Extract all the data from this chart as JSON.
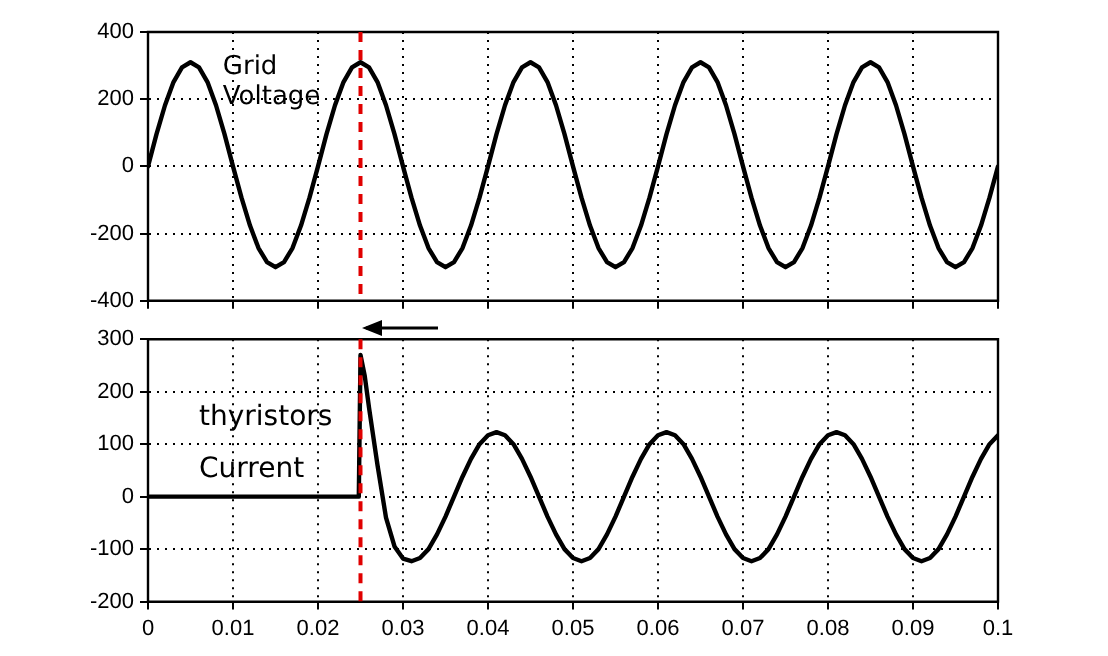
{
  "chart_data": [
    {
      "type": "line",
      "xlim": [
        0,
        0.1
      ],
      "xticks": [
        0,
        0.01,
        0.02,
        0.03,
        0.04,
        0.05,
        0.06,
        0.07,
        0.08,
        0.09,
        0.1
      ],
      "ylim": [
        -400,
        400
      ],
      "yticks": [
        -400,
        -200,
        0,
        200,
        400
      ],
      "tick_labels": "y",
      "grid": true,
      "marker": "none",
      "line_style": "solid",
      "x": [
        0,
        0.001,
        0.002,
        0.003,
        0.004,
        0.005,
        0.006,
        0.007,
        0.008,
        0.009,
        0.01,
        0.011,
        0.012,
        0.013,
        0.014,
        0.015,
        0.016,
        0.017,
        0.018,
        0.019,
        0.02,
        0.021,
        0.022,
        0.023,
        0.024,
        0.025,
        0.026,
        0.027,
        0.028,
        0.029,
        0.03,
        0.031,
        0.032,
        0.033,
        0.034,
        0.035,
        0.036,
        0.037,
        0.038,
        0.039,
        0.04,
        0.041,
        0.042,
        0.043,
        0.044,
        0.045,
        0.046,
        0.047,
        0.048,
        0.049,
        0.05,
        0.051,
        0.052,
        0.053,
        0.054,
        0.055,
        0.056,
        0.057,
        0.058,
        0.059,
        0.06,
        0.061,
        0.062,
        0.063,
        0.064,
        0.065,
        0.066,
        0.067,
        0.068,
        0.069,
        0.07,
        0.071,
        0.072,
        0.073,
        0.074,
        0.075,
        0.076,
        0.077,
        0.078,
        0.079,
        0.08,
        0.081,
        0.082,
        0.083,
        0.084,
        0.085,
        0.086,
        0.087,
        0.088,
        0.089,
        0.09,
        0.091,
        0.092,
        0.093,
        0.094,
        0.095,
        0.096,
        0.097,
        0.098,
        0.099,
        0.1
      ],
      "series": [
        {
          "name": "Grid Voltage",
          "color": "#000000",
          "values": [
            0,
            96,
            182,
            251,
            295,
            310,
            295,
            251,
            182,
            96,
            0,
            -93,
            -176,
            -243,
            -285,
            -300,
            -285,
            -243,
            -176,
            -93,
            0,
            96,
            182,
            251,
            295,
            310,
            295,
            251,
            182,
            96,
            0,
            -93,
            -176,
            -243,
            -285,
            -300,
            -285,
            -243,
            -176,
            -93,
            0,
            96,
            182,
            251,
            295,
            310,
            295,
            251,
            182,
            96,
            0,
            -93,
            -176,
            -243,
            -285,
            -300,
            -285,
            -243,
            -176,
            -93,
            0,
            96,
            182,
            251,
            295,
            310,
            295,
            251,
            182,
            96,
            0,
            -93,
            -176,
            -243,
            -285,
            -300,
            -285,
            -243,
            -176,
            -93,
            0,
            96,
            182,
            251,
            295,
            310,
            295,
            251,
            182,
            96,
            0,
            -93,
            -176,
            -243,
            -285,
            -300,
            -285,
            -243,
            -176,
            -93,
            0
          ]
        }
      ],
      "ref_lines": [
        {
          "axis": "x",
          "value": 0.025,
          "color": "#e00000",
          "line_style": "dashed"
        }
      ]
    },
    {
      "type": "line",
      "xlim": [
        0,
        0.1
      ],
      "xticks": [
        0,
        0.01,
        0.02,
        0.03,
        0.04,
        0.05,
        0.06,
        0.07,
        0.08,
        0.09,
        0.1
      ],
      "ylim": [
        -200,
        300
      ],
      "yticks": [
        -200,
        -100,
        0,
        100,
        200,
        300
      ],
      "grid": true,
      "marker": "none",
      "line_style": "solid",
      "x": [
        0,
        0.0248,
        0.025,
        0.0255,
        0.026,
        0.027,
        0.028,
        0.029,
        0.03,
        0.031,
        0.032,
        0.033,
        0.034,
        0.035,
        0.036,
        0.037,
        0.038,
        0.039,
        0.04,
        0.041,
        0.042,
        0.043,
        0.044,
        0.045,
        0.046,
        0.047,
        0.048,
        0.049,
        0.05,
        0.051,
        0.052,
        0.053,
        0.054,
        0.055,
        0.056,
        0.057,
        0.058,
        0.059,
        0.06,
        0.061,
        0.062,
        0.063,
        0.064,
        0.065,
        0.066,
        0.067,
        0.068,
        0.069,
        0.07,
        0.071,
        0.072,
        0.073,
        0.074,
        0.075,
        0.076,
        0.077,
        0.078,
        0.079,
        0.08,
        0.081,
        0.082,
        0.083,
        0.084,
        0.085,
        0.086,
        0.087,
        0.088,
        0.089,
        0.09,
        0.091,
        0.092,
        0.093,
        0.094,
        0.095,
        0.096,
        0.097,
        0.098,
        0.099,
        0.1
      ],
      "series": [
        {
          "name": "thyristors Current",
          "color": "#000000",
          "values": [
            0,
            0,
            270,
            230,
            170,
            60,
            -40,
            -95,
            -118,
            -123,
            -117,
            -100,
            -72,
            -38,
            0,
            38,
            72,
            100,
            117,
            123,
            117,
            100,
            72,
            38,
            0,
            -38,
            -72,
            -100,
            -117,
            -123,
            -117,
            -100,
            -72,
            -38,
            0,
            38,
            72,
            100,
            117,
            123,
            117,
            100,
            72,
            38,
            0,
            -38,
            -72,
            -100,
            -117,
            -123,
            -117,
            -100,
            -72,
            -38,
            0,
            38,
            72,
            100,
            117,
            123,
            117,
            100,
            72,
            38,
            0,
            -38,
            -72,
            -100,
            -117,
            -123,
            -117,
            -100,
            -72,
            -38,
            0,
            38,
            72,
            100,
            117
          ]
        }
      ],
      "ref_lines": [
        {
          "axis": "x",
          "value": 0.025,
          "color": "#e00000",
          "line_style": "dashed"
        }
      ]
    }
  ]
}
